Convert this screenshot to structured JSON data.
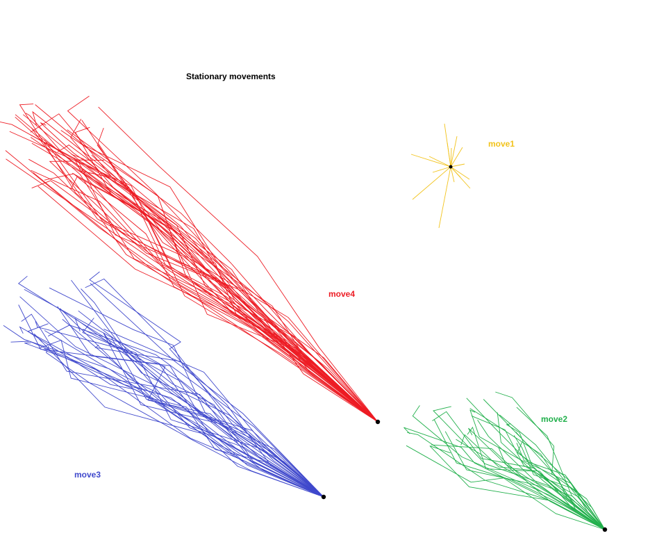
{
  "title": "Stationary movements",
  "groups": [
    {
      "id": "move1",
      "label": "move1",
      "color": "#f2c31c"
    },
    {
      "id": "move2",
      "label": "move2",
      "color": "#22b04c"
    },
    {
      "id": "move3",
      "label": "move3",
      "color": "#3f48cc"
    },
    {
      "id": "move4",
      "label": "move4",
      "color": "#ed1c24"
    }
  ]
}
